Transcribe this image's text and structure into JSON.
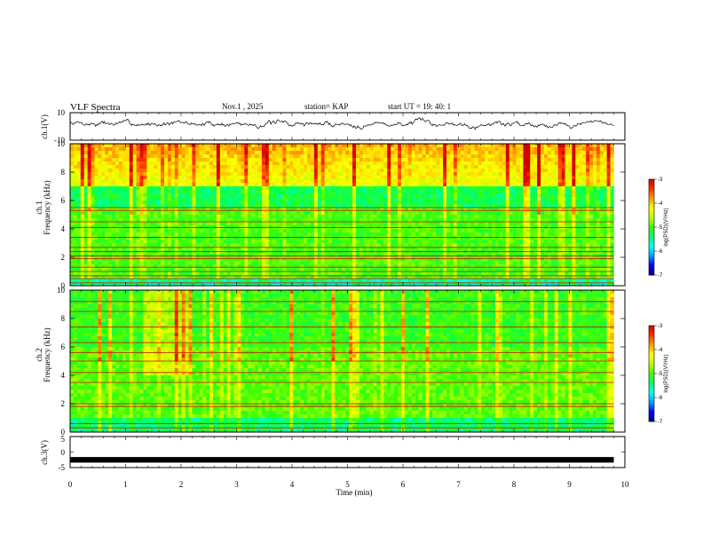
{
  "header": {
    "title": "VLF Spectra",
    "date": "Nov.1  , 2025",
    "station": "station= KAP",
    "start": "start  UT  =   19: 40: 1"
  },
  "colors": {
    "trace": "#000000",
    "background": "#ffffff",
    "colormap": [
      "#000080",
      "#0000ff",
      "#00a0ff",
      "#00ffff",
      "#00ff60",
      "#40ff00",
      "#c0ff00",
      "#ffff00",
      "#ffa000",
      "#ff3000",
      "#d00000",
      "#ffffff"
    ]
  },
  "chart_data": [
    {
      "type": "line",
      "name": "ch1-waveform",
      "ylabel": "ch.1(V)",
      "ylim": [
        -10,
        10
      ],
      "yticks": [
        "10",
        "-10"
      ],
      "xlim": [
        0,
        10
      ],
      "seed": 7,
      "baseline": 2,
      "amplitude": 4
    },
    {
      "type": "heatmap",
      "name": "ch1-spectrogram",
      "channel": "ch.1",
      "ylabel": "Frequency  (kHz)",
      "ylim": [
        0,
        10
      ],
      "yticks": [
        "0",
        "2",
        "4",
        "6",
        "8",
        "10"
      ],
      "xlim": [
        0,
        10
      ],
      "data_end_min": 9.8,
      "colorbar": {
        "label": "log(PSD)(V²/Hz)",
        "range": [
          -7,
          -3
        ],
        "ticks": [
          "-3",
          "-4",
          "-5",
          "-6",
          "-7"
        ]
      },
      "lines_khz": [
        0.2,
        0.5,
        0.7,
        1.0,
        1.3,
        1.9,
        2.1,
        2.4,
        2.7,
        3.4,
        4.1,
        4.5,
        5.3,
        5.5
      ],
      "seed": 11
    },
    {
      "type": "heatmap",
      "name": "ch2-spectrogram",
      "channel": "ch.2",
      "ylabel": "Frequency  (kHz)",
      "ylim": [
        0,
        10
      ],
      "yticks": [
        "0",
        "2",
        "4",
        "6",
        "8",
        "10"
      ],
      "xlim": [
        0,
        10
      ],
      "data_end_min": 9.8,
      "colorbar": {
        "label": "log(PSD)(V²/Hz)",
        "range": [
          -7,
          -3
        ],
        "ticks": [
          "-3",
          "-4",
          "-5",
          "-6",
          "-7"
        ]
      },
      "lines_khz": [
        0.3,
        0.6,
        1.8,
        2.0,
        3.5,
        4.2,
        5.0,
        5.6,
        6.3,
        7.4,
        8.5,
        9.2
      ],
      "seed": 23
    },
    {
      "type": "line",
      "name": "ch3-waveform",
      "ylabel": "ch.3(V)",
      "ylim": [
        -5,
        5
      ],
      "yticks": [
        "5",
        "0",
        "-5"
      ],
      "xlim": [
        0,
        10
      ],
      "level": -2.5,
      "band": 0.9
    }
  ],
  "xaxis": {
    "label": "Time  (min)",
    "ticks": [
      "0",
      "1",
      "2",
      "3",
      "4",
      "5",
      "6",
      "7",
      "8",
      "9",
      "10"
    ]
  }
}
